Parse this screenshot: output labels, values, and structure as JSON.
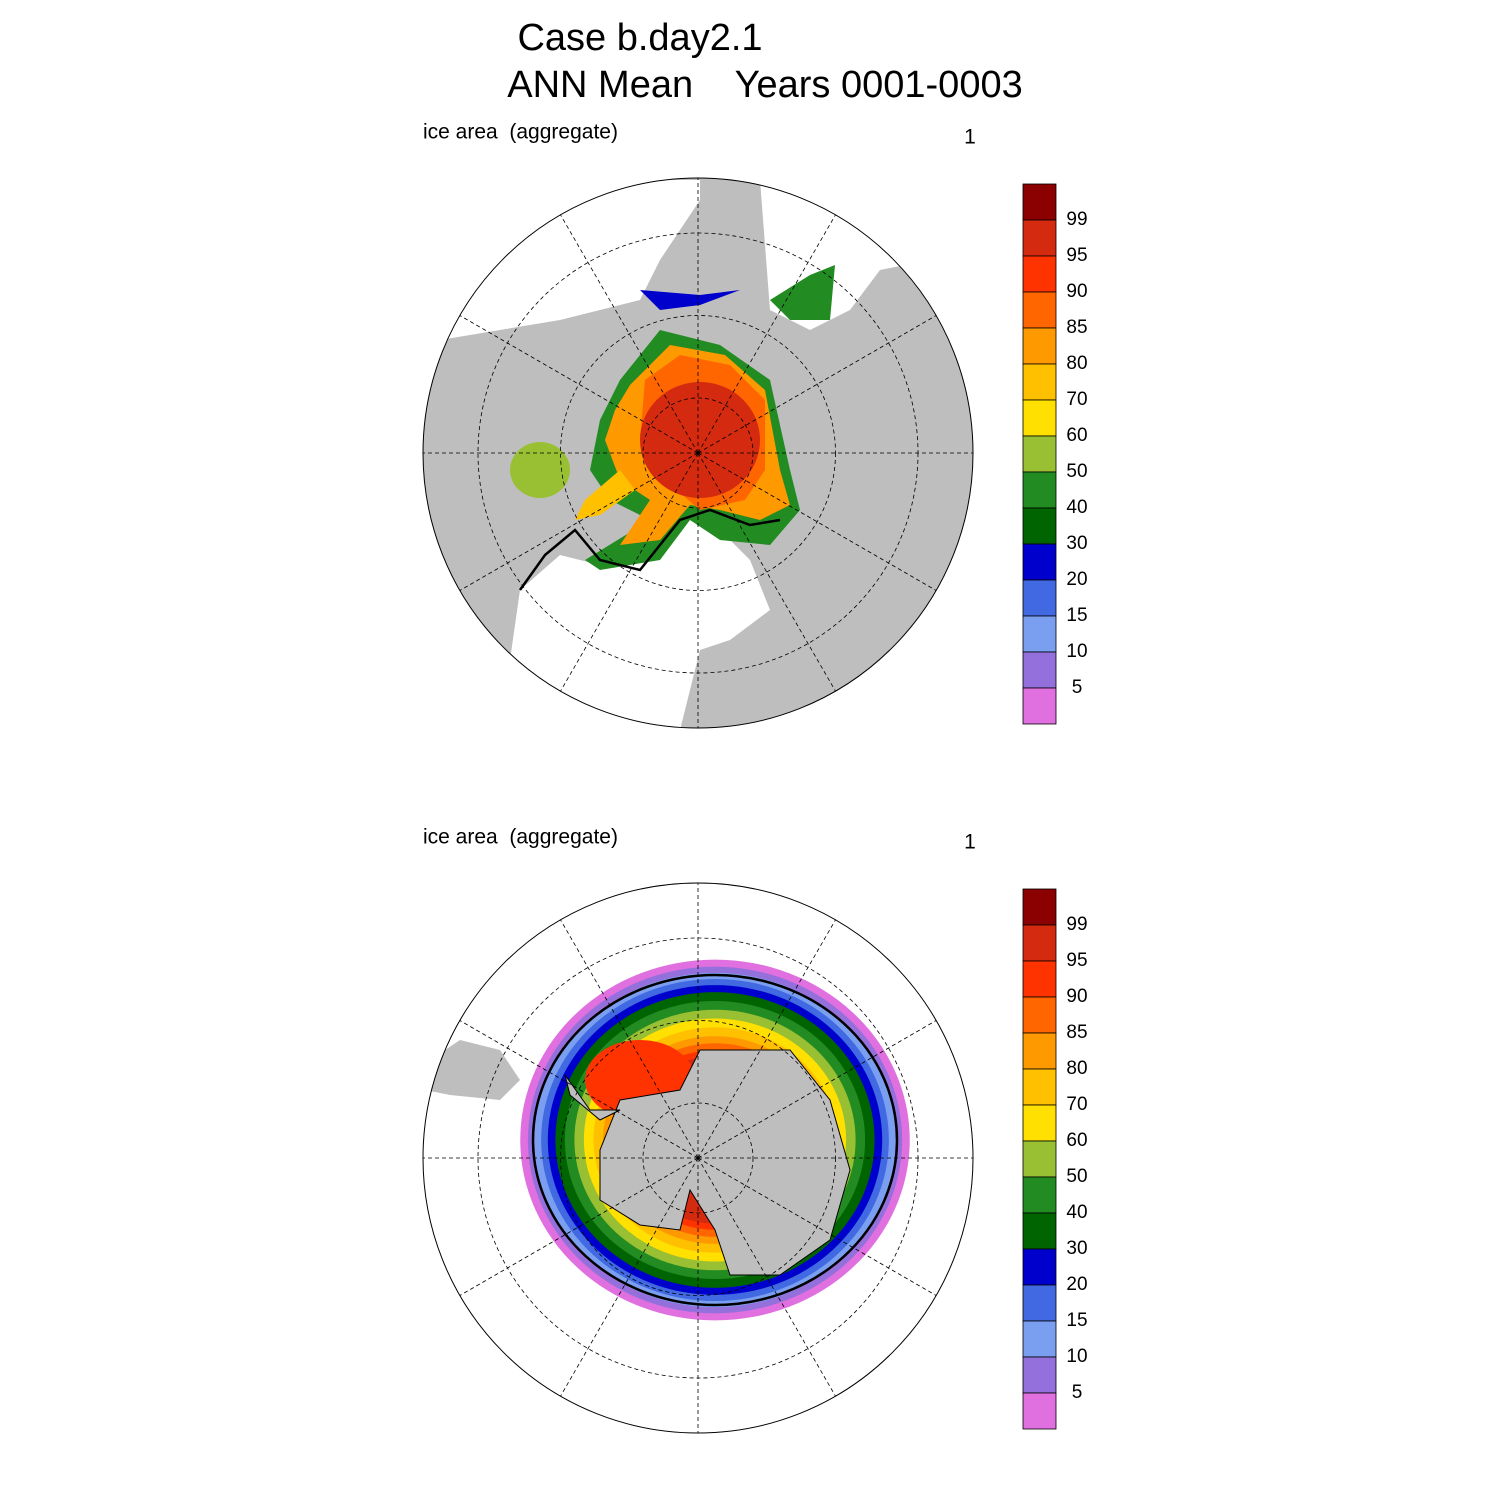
{
  "title": {
    "line1": "Case b.day2.1",
    "line2": "ANN Mean    Years 0001-0003"
  },
  "panels": [
    {
      "label_left": "ice area  (aggregate)",
      "label_right": "1"
    },
    {
      "label_left": "ice area  (aggregate)",
      "label_right": "1"
    }
  ],
  "colorbar": {
    "levels": [
      99,
      95,
      90,
      85,
      80,
      70,
      60,
      50,
      40,
      30,
      20,
      15,
      10,
      5
    ],
    "colors": [
      "#8b0000",
      "#d42a10",
      "#ff3300",
      "#ff6600",
      "#ff9900",
      "#ffc000",
      "#ffe000",
      "#99c033",
      "#228b22",
      "#006400",
      "#0000cd",
      "#4169e1",
      "#7b9ff0",
      "#9370db",
      "#e070e0"
    ]
  }
}
